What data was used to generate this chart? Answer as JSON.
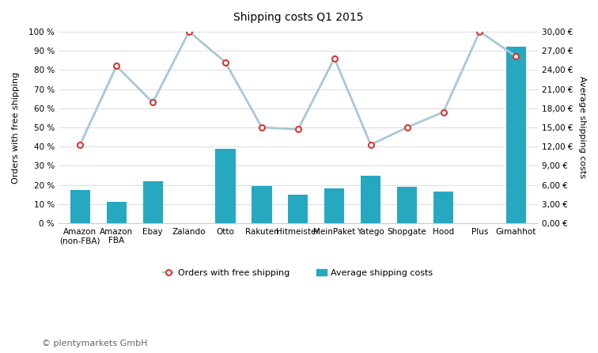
{
  "title": "Shipping costs Q1 2015",
  "categories": [
    "Amazon\n(non-FBA)",
    "Amazon\nFBA",
    "Ebay",
    "Zalando",
    "Otto",
    "Rakuten",
    "Hitmeister",
    "MeinPaket",
    "Yatego",
    "Shopgate",
    "Hood",
    "Plus",
    "Gimahhot"
  ],
  "free_shipping_pct": [
    41,
    82,
    63,
    100,
    84,
    50,
    49,
    86,
    41,
    50,
    58,
    100,
    87
  ],
  "avg_shipping_costs_pct": [
    17.5,
    11,
    22,
    0,
    39,
    19.5,
    15,
    18,
    25,
    19,
    16.5,
    0,
    92
  ],
  "bar_color": "#26a9c0",
  "line_color": "#a8c8d8",
  "marker_facecolor": "#ffffff",
  "marker_edgecolor": "#d93535",
  "ylabel_left": "Orders with free shipping",
  "ylabel_right": "Average shipping costs",
  "ylim_left": [
    0,
    100
  ],
  "ylim_right": [
    0,
    30
  ],
  "yticks_left": [
    0,
    10,
    20,
    30,
    40,
    50,
    60,
    70,
    80,
    90,
    100
  ],
  "ytick_labels_left": [
    "0 %",
    "10 %",
    "20 %",
    "30 %",
    "40 %",
    "50 %",
    "60 %",
    "70 %",
    "80 %",
    "90 %",
    "100 %"
  ],
  "yticks_right": [
    0,
    3,
    6,
    9,
    12,
    15,
    18,
    21,
    24,
    27,
    30
  ],
  "ytick_labels_right": [
    "0,00 €",
    "3,00 €",
    "6,00 €",
    "9,00 €",
    "12,00 €",
    "15,00 €",
    "18,00 €",
    "21,00 €",
    "24,00 €",
    "27,00 €",
    "30,00 €"
  ],
  "legend_line_label": "Orders with free shipping",
  "legend_bar_label": "Average shipping costs",
  "copyright": "© plentymarkets GmbH",
  "bg_color": "#ffffff",
  "grid_color": "#e0e0e0",
  "spine_color": "#cccccc",
  "title_fontsize": 10,
  "axis_fontsize": 8,
  "tick_fontsize": 7.5,
  "copyright_fontsize": 8,
  "bar_width": 0.55,
  "line_width": 2.0,
  "marker_size": 5,
  "marker_edge_width": 1.5
}
